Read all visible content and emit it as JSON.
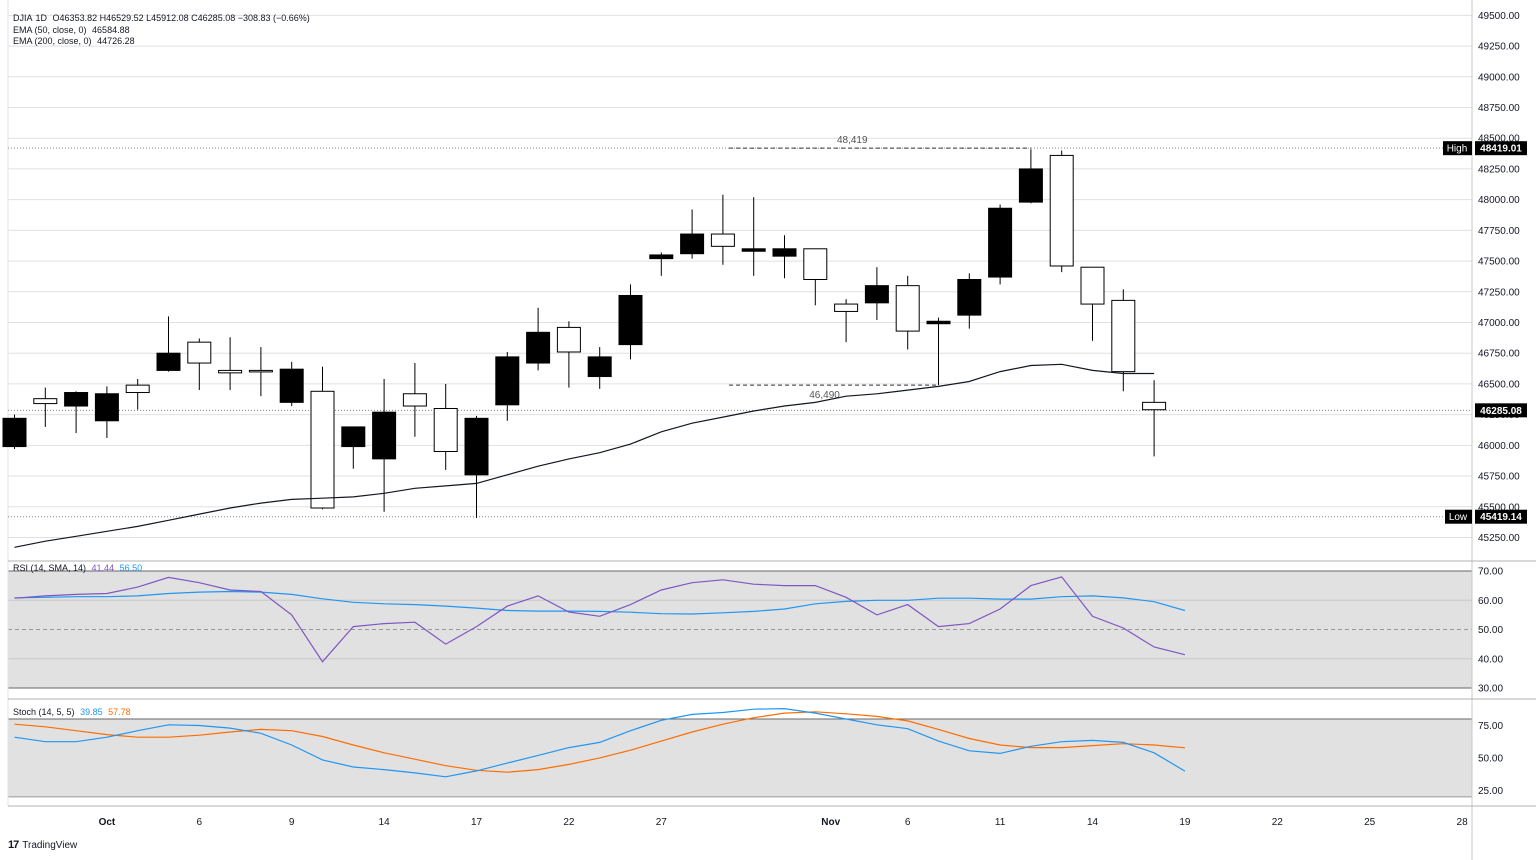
{
  "header": {
    "symbol": "DJIA",
    "interval": "1D",
    "ohlc": "O46353.82  H46529.52  L45912.08  C46285.08  −308.83 (−0.66%)",
    "ema50_label": "EMA (50, close, 0)",
    "ema50_value": "46584.88",
    "ema200_label": "EMA (200, close, 0)",
    "ema200_value": "44726.28"
  },
  "markers": {
    "high_tag": "High",
    "high_value": "48419.01",
    "low_tag": "Low",
    "low_value": "45419.14",
    "last_value": "46285.08",
    "range_top_label": "48,419",
    "range_bottom_label": "46,490"
  },
  "rsi": {
    "label": "RSI (14, SMA, 14)",
    "value1": "41.44",
    "value2": "56.50"
  },
  "stoch": {
    "label": "Stoch (14, 5, 5)",
    "k_value": "39.85",
    "d_value": "57.78"
  },
  "footer": {
    "brand": "TradingView"
  },
  "colors": {
    "up_fill": "#ffffff",
    "down_fill": "#000000",
    "ema": "#131722",
    "rsi_line": "#7e57c2",
    "rsi_ma": "#2196f3",
    "stoch_k": "#2196f3",
    "stoch_d": "#ff6d00",
    "band_fill": "#e1e1e1"
  },
  "chart_data": {
    "type": "candlestick",
    "price_axis": {
      "ylim": [
        45140,
        49560
      ],
      "ticks": [
        "45250.00",
        "45500.00",
        "45750.00",
        "46000.00",
        "46250.00",
        "46500.00",
        "46750.00",
        "47000.00",
        "47250.00",
        "47500.00",
        "47750.00",
        "48000.00",
        "48250.00",
        "48500.00",
        "48750.00",
        "49000.00",
        "49250.00",
        "49500.00"
      ]
    },
    "x_labels": [
      {
        "label": "Oct",
        "idx": 3
      },
      {
        "label": "6",
        "idx": 6
      },
      {
        "label": "9",
        "idx": 9
      },
      {
        "label": "14",
        "idx": 12
      },
      {
        "label": "17",
        "idx": 15
      },
      {
        "label": "22",
        "idx": 18
      },
      {
        "label": "27",
        "idx": 21
      },
      {
        "label": "Nov",
        "idx": 26.5
      },
      {
        "label": "6",
        "idx": 29
      },
      {
        "label": "11",
        "idx": 32
      },
      {
        "label": "14",
        "idx": 35
      },
      {
        "label": "19",
        "idx": 38
      },
      {
        "label": "22",
        "idx": 41
      },
      {
        "label": "25",
        "idx": 44
      },
      {
        "label": "28",
        "idx": 47
      }
    ],
    "candles": [
      [
        46220,
        46250,
        45970,
        45990
      ],
      [
        46340,
        46470,
        46150,
        46380
      ],
      [
        46430,
        46440,
        46100,
        46320
      ],
      [
        46420,
        46480,
        46060,
        46200
      ],
      [
        46430,
        46540,
        46290,
        46490
      ],
      [
        46750,
        47050,
        46600,
        46610
      ],
      [
        46670,
        46870,
        46450,
        46840
      ],
      [
        46590,
        46880,
        46450,
        46610
      ],
      [
        46610,
        46800,
        46400,
        46610
      ],
      [
        46620,
        46680,
        46320,
        46350
      ],
      [
        45490,
        46640,
        45480,
        46440
      ],
      [
        46150,
        46150,
        45810,
        45990
      ],
      [
        46270,
        46540,
        45460,
        45890
      ],
      [
        46320,
        46670,
        46070,
        46420
      ],
      [
        45950,
        46500,
        45800,
        46300
      ],
      [
        46220,
        46240,
        45410,
        45760
      ],
      [
        46720,
        46760,
        46200,
        46330
      ],
      [
        46920,
        47120,
        46610,
        46670
      ],
      [
        46760,
        47010,
        46470,
        46960
      ],
      [
        46720,
        46800,
        46460,
        46560
      ],
      [
        47220,
        47310,
        46700,
        46820
      ],
      [
        47550,
        47570,
        47380,
        47520
      ],
      [
        47720,
        47920,
        47520,
        47560
      ],
      [
        47620,
        48040,
        47470,
        47720
      ],
      [
        47600,
        48020,
        47380,
        47580
      ],
      [
        47600,
        47710,
        47360,
        47540
      ],
      [
        47350,
        47600,
        47140,
        47600
      ],
      [
        47090,
        47190,
        46840,
        47150
      ],
      [
        47300,
        47450,
        47020,
        47160
      ],
      [
        46930,
        47380,
        46780,
        47300
      ],
      [
        47010,
        47040,
        46490,
        46990
      ],
      [
        47350,
        47400,
        46950,
        47060
      ],
      [
        47930,
        47960,
        47310,
        47370
      ],
      [
        48250,
        48410,
        47970,
        47980
      ],
      [
        47460,
        48400,
        47410,
        48360
      ],
      [
        47150,
        47450,
        46850,
        47450
      ],
      [
        46600,
        47270,
        46440,
        47180
      ],
      [
        46290,
        46530,
        45910,
        46350
      ]
    ],
    "ema50": [
      [
        0,
        45170
      ],
      [
        1,
        45220
      ],
      [
        2,
        45260
      ],
      [
        3,
        45300
      ],
      [
        4,
        45340
      ],
      [
        5,
        45390
      ],
      [
        6,
        45440
      ],
      [
        7,
        45490
      ],
      [
        8,
        45530
      ],
      [
        9,
        45560
      ],
      [
        10,
        45570
      ],
      [
        11,
        45580
      ],
      [
        12,
        45610
      ],
      [
        13,
        45650
      ],
      [
        14,
        45670
      ],
      [
        15,
        45690
      ],
      [
        16,
        45760
      ],
      [
        17,
        45830
      ],
      [
        18,
        45890
      ],
      [
        19,
        45940
      ],
      [
        20,
        46010
      ],
      [
        21,
        46110
      ],
      [
        22,
        46180
      ],
      [
        23,
        46230
      ],
      [
        24,
        46280
      ],
      [
        25,
        46320
      ],
      [
        26,
        46350
      ],
      [
        27,
        46400
      ],
      [
        28,
        46420
      ],
      [
        29,
        46450
      ],
      [
        30,
        46480
      ],
      [
        31,
        46520
      ],
      [
        32,
        46600
      ],
      [
        33,
        46650
      ],
      [
        34,
        46660
      ],
      [
        35,
        46610
      ],
      [
        36,
        46585
      ],
      [
        37,
        46585
      ]
    ],
    "rsi": {
      "ylim": [
        30,
        70
      ],
      "ticks": [
        "30.00",
        "40.00",
        "50.00",
        "60.00",
        "70.00"
      ],
      "rsi": [
        [
          0,
          60.7
        ],
        [
          1,
          61.5
        ],
        [
          2,
          62.0
        ],
        [
          3,
          62.3
        ],
        [
          4,
          64.5
        ],
        [
          5,
          67.8
        ],
        [
          6,
          66.0
        ],
        [
          7,
          63.5
        ],
        [
          8,
          63.0
        ],
        [
          9,
          55.0
        ],
        [
          10,
          39.0
        ],
        [
          11,
          51.0
        ],
        [
          12,
          52.0
        ],
        [
          13,
          52.5
        ],
        [
          14,
          45.0
        ],
        [
          15,
          51.0
        ],
        [
          16,
          58.0
        ],
        [
          17,
          61.5
        ],
        [
          18,
          56.0
        ],
        [
          19,
          54.5
        ],
        [
          20,
          58.5
        ],
        [
          21,
          63.5
        ],
        [
          22,
          66.0
        ],
        [
          23,
          67.0
        ],
        [
          24,
          65.5
        ],
        [
          25,
          65.0
        ],
        [
          26,
          65.0
        ],
        [
          27,
          61.0
        ],
        [
          28,
          55.0
        ],
        [
          29,
          58.5
        ],
        [
          30,
          51.0
        ],
        [
          31,
          52.0
        ],
        [
          32,
          57.0
        ],
        [
          33,
          65.0
        ],
        [
          34,
          68.0
        ],
        [
          35,
          54.5
        ],
        [
          36,
          50.5
        ],
        [
          37,
          44.0
        ],
        [
          38,
          41.4
        ]
      ],
      "ma": [
        [
          0,
          60.8
        ],
        [
          1,
          61.0
        ],
        [
          2,
          61.2
        ],
        [
          3,
          61.2
        ],
        [
          4,
          61.5
        ],
        [
          5,
          62.3
        ],
        [
          6,
          62.8
        ],
        [
          7,
          63.0
        ],
        [
          8,
          62.8
        ],
        [
          9,
          62.0
        ],
        [
          10,
          60.5
        ],
        [
          11,
          59.3
        ],
        [
          12,
          58.8
        ],
        [
          13,
          58.5
        ],
        [
          14,
          58.0
        ],
        [
          15,
          57.3
        ],
        [
          16,
          56.5
        ],
        [
          17,
          56.3
        ],
        [
          18,
          56.3
        ],
        [
          19,
          56.2
        ],
        [
          20,
          55.9
        ],
        [
          21,
          55.4
        ],
        [
          22,
          55.3
        ],
        [
          23,
          55.7
        ],
        [
          24,
          56.2
        ],
        [
          25,
          57.0
        ],
        [
          26,
          58.8
        ],
        [
          27,
          59.6
        ],
        [
          28,
          60.0
        ],
        [
          29,
          60.0
        ],
        [
          30,
          60.7
        ],
        [
          31,
          60.7
        ],
        [
          32,
          60.4
        ],
        [
          33,
          60.4
        ],
        [
          34,
          61.2
        ],
        [
          35,
          61.5
        ],
        [
          36,
          60.8
        ],
        [
          37,
          59.5
        ],
        [
          38,
          56.5
        ]
      ]
    },
    "stoch": {
      "ylim": [
        13,
        90
      ],
      "ticks": [
        "25.00",
        "50.00",
        "75.00"
      ],
      "k": [
        [
          0,
          66.0
        ],
        [
          1,
          62.5
        ],
        [
          2,
          62.5
        ],
        [
          3,
          66.0
        ],
        [
          4,
          71.0
        ],
        [
          5,
          75.5
        ],
        [
          6,
          75.0
        ],
        [
          7,
          73.0
        ],
        [
          8,
          69.0
        ],
        [
          9,
          60.0
        ],
        [
          10,
          48.5
        ],
        [
          11,
          43.0
        ],
        [
          12,
          41.0
        ],
        [
          13,
          38.5
        ],
        [
          14,
          35.5
        ],
        [
          15,
          40.0
        ],
        [
          16,
          46.0
        ],
        [
          17,
          52.0
        ],
        [
          18,
          58.0
        ],
        [
          19,
          62.0
        ],
        [
          20,
          71.0
        ],
        [
          21,
          79.0
        ],
        [
          22,
          83.5
        ],
        [
          23,
          85.0
        ],
        [
          24,
          87.5
        ],
        [
          25,
          88.0
        ],
        [
          26,
          84.5
        ],
        [
          27,
          80.0
        ],
        [
          28,
          75.5
        ],
        [
          29,
          72.5
        ],
        [
          30,
          63.0
        ],
        [
          31,
          55.5
        ],
        [
          32,
          53.5
        ],
        [
          33,
          59.0
        ],
        [
          34,
          62.5
        ],
        [
          35,
          63.5
        ],
        [
          36,
          62.0
        ],
        [
          37,
          54.0
        ],
        [
          38,
          39.85
        ]
      ],
      "d": [
        [
          0,
          76.0
        ],
        [
          1,
          74.0
        ],
        [
          2,
          71.0
        ],
        [
          3,
          68.0
        ],
        [
          4,
          66.0
        ],
        [
          5,
          66.0
        ],
        [
          6,
          67.5
        ],
        [
          7,
          70.0
        ],
        [
          8,
          72.0
        ],
        [
          9,
          71.0
        ],
        [
          10,
          66.5
        ],
        [
          11,
          60.0
        ],
        [
          12,
          54.0
        ],
        [
          13,
          49.0
        ],
        [
          14,
          44.0
        ],
        [
          15,
          40.5
        ],
        [
          16,
          39.0
        ],
        [
          17,
          41.0
        ],
        [
          18,
          45.0
        ],
        [
          19,
          50.0
        ],
        [
          20,
          56.0
        ],
        [
          21,
          63.0
        ],
        [
          22,
          70.0
        ],
        [
          23,
          76.0
        ],
        [
          24,
          81.0
        ],
        [
          25,
          84.5
        ],
        [
          26,
          85.5
        ],
        [
          27,
          84.0
        ],
        [
          28,
          82.0
        ],
        [
          29,
          78.5
        ],
        [
          30,
          72.0
        ],
        [
          31,
          65.0
        ],
        [
          32,
          60.0
        ],
        [
          33,
          58.0
        ],
        [
          34,
          58.0
        ],
        [
          35,
          59.5
        ],
        [
          36,
          61.0
        ],
        [
          37,
          60.0
        ],
        [
          38,
          57.78
        ]
      ]
    }
  }
}
